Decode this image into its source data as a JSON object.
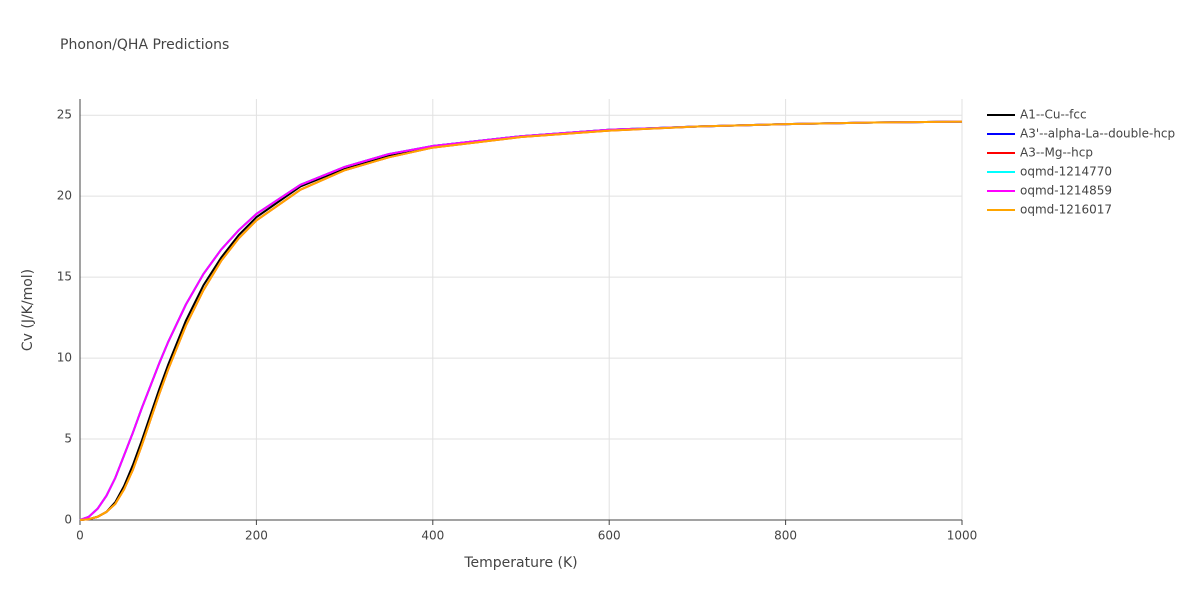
{
  "chart_data": {
    "type": "line",
    "title": "Phonon/QHA Predictions",
    "x_label": "Temperature (K)",
    "y_label": "Cv (J/K/mol)",
    "x": [
      0,
      10,
      20,
      30,
      40,
      50,
      60,
      70,
      80,
      90,
      100,
      120,
      140,
      160,
      180,
      200,
      250,
      300,
      350,
      400,
      500,
      600,
      700,
      800,
      900,
      1000
    ],
    "series": [
      {
        "name": "A1--Cu--fcc",
        "color": "#000000",
        "values": [
          0,
          0.05,
          0.2,
          0.5,
          1.1,
          2.1,
          3.4,
          4.9,
          6.5,
          8.1,
          9.6,
          12.3,
          14.5,
          16.2,
          17.6,
          18.7,
          20.6,
          21.7,
          22.5,
          23.1,
          23.7,
          24.1,
          24.3,
          24.45,
          24.55,
          24.6
        ]
      },
      {
        "name": "A3'--alpha-La--double-hcp",
        "color": "#0000ff",
        "values": [
          0,
          0.2,
          0.7,
          1.5,
          2.6,
          4.0,
          5.4,
          6.9,
          8.3,
          9.7,
          11.0,
          13.3,
          15.2,
          16.7,
          17.9,
          18.9,
          20.7,
          21.8,
          22.6,
          23.1,
          23.7,
          24.1,
          24.3,
          24.45,
          24.55,
          24.6
        ]
      },
      {
        "name": "A3--Mg--hcp",
        "color": "#ff0000",
        "values": [
          0,
          0.05,
          0.2,
          0.5,
          1.0,
          1.9,
          3.1,
          4.6,
          6.2,
          7.8,
          9.3,
          12.0,
          14.2,
          16.0,
          17.4,
          18.5,
          20.4,
          21.6,
          22.4,
          23.0,
          23.65,
          24.05,
          24.3,
          24.45,
          24.55,
          24.6
        ]
      },
      {
        "name": "oqmd-1214770",
        "color": "#00ffff",
        "values": [
          0,
          0.2,
          0.7,
          1.5,
          2.6,
          4.0,
          5.4,
          6.9,
          8.3,
          9.7,
          11.0,
          13.3,
          15.2,
          16.7,
          17.9,
          18.9,
          20.7,
          21.8,
          22.6,
          23.1,
          23.7,
          24.1,
          24.3,
          24.45,
          24.55,
          24.6
        ]
      },
      {
        "name": "oqmd-1214859",
        "color": "#ff00ff",
        "values": [
          0,
          0.2,
          0.7,
          1.5,
          2.6,
          4.0,
          5.4,
          6.9,
          8.3,
          9.7,
          11.0,
          13.3,
          15.2,
          16.7,
          17.9,
          18.9,
          20.7,
          21.8,
          22.6,
          23.1,
          23.7,
          24.1,
          24.3,
          24.45,
          24.55,
          24.6
        ]
      },
      {
        "name": "oqmd-1216017",
        "color": "#ffa500",
        "values": [
          0,
          0.05,
          0.2,
          0.5,
          1.0,
          1.9,
          3.1,
          4.6,
          6.2,
          7.8,
          9.3,
          12.0,
          14.2,
          16.0,
          17.4,
          18.5,
          20.4,
          21.6,
          22.4,
          23.0,
          23.65,
          24.05,
          24.3,
          24.45,
          24.55,
          24.6
        ]
      }
    ],
    "xlim": [
      0,
      1000
    ],
    "xticks": [
      0,
      200,
      400,
      600,
      800,
      1000
    ],
    "ylim": [
      0,
      26
    ],
    "yticks": [
      0,
      5,
      10,
      15,
      20,
      25
    ],
    "grid": true
  }
}
